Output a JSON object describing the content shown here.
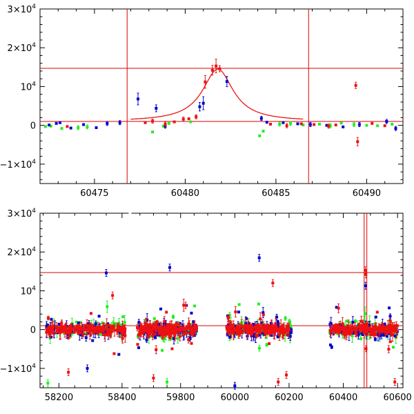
{
  "chart_data": [
    {
      "type": "scatter",
      "title": "",
      "xlabel": "",
      "ylabel": "",
      "xlim": [
        60472,
        60492
      ],
      "ylim": [
        -15000,
        30000
      ],
      "x_ticks": [
        60475,
        60480,
        60485,
        60490
      ],
      "x_tick_labels": [
        "60475",
        "60480",
        "60485",
        "60490"
      ],
      "y_ticks": [
        30000,
        20000,
        10000,
        0,
        -10000
      ],
      "y_tick_labels": [
        {
          "mantissa": "3×10",
          "exp": "4"
        },
        {
          "mantissa": "2×10",
          "exp": "4"
        },
        {
          "mantissa": "10",
          "exp": "4"
        },
        {
          "mantissa": "0",
          "exp": ""
        },
        {
          "mantissa": "−1×10",
          "exp": "4"
        }
      ],
      "grid": false,
      "hlines": [
        14700,
        1000
      ],
      "vlines": [
        60476.8,
        60486.8
      ],
      "colors": {
        "blue": "#0000cc",
        "green": "#22ee22",
        "red": "#ee1111",
        "lines": "#dd0000"
      },
      "model_curve": {
        "peak_x": 60481.8,
        "peak_y": 14500,
        "baseline": 1000,
        "width": 1.1
      },
      "series": [
        {
          "color": "green",
          "points": [
            [
              60472.3,
              -300
            ],
            [
              60472.6,
              -200
            ],
            [
              60473.2,
              -800
            ],
            [
              60474.1,
              -600
            ],
            [
              60474.6,
              -400
            ],
            [
              60478.2,
              -1700
            ],
            [
              60478.8,
              -200
            ],
            [
              60479.1,
              500
            ],
            [
              60480.3,
              900
            ],
            [
              60484.1,
              -2700
            ],
            [
              60484.3,
              -1500
            ],
            [
              60485.2,
              300
            ],
            [
              60485.8,
              500
            ],
            [
              60486.5,
              100
            ],
            [
              60487.4,
              300
            ],
            [
              60488.0,
              -100
            ],
            [
              60488.6,
              600
            ],
            [
              60489.3,
              200
            ],
            [
              60490.0,
              0
            ],
            [
              60490.6,
              -100
            ],
            [
              60491.4,
              300
            ]
          ]
        },
        {
          "color": "blue",
          "points": [
            [
              60472.5,
              100
            ],
            [
              60472.9,
              500
            ],
            [
              60473.1,
              700
            ],
            [
              60473.7,
              -700
            ],
            [
              60474.4,
              200
            ],
            [
              60475.1,
              -600
            ],
            [
              60475.7,
              500
            ],
            [
              60476.4,
              700
            ],
            [
              60477.4,
              6800
            ],
            [
              60478.4,
              4400
            ],
            [
              60478.9,
              -200
            ],
            [
              60480.8,
              4800
            ],
            [
              60481.0,
              5700
            ],
            [
              60482.3,
              11300
            ],
            [
              60484.2,
              1800
            ],
            [
              60484.5,
              800
            ],
            [
              60485.4,
              700
            ],
            [
              60486.2,
              400
            ],
            [
              60486.9,
              200
            ],
            [
              60487.8,
              0
            ],
            [
              60488.7,
              -400
            ],
            [
              60489.6,
              200
            ],
            [
              60491.1,
              1000
            ],
            [
              60491.6,
              -800
            ]
          ]
        },
        {
          "color": "red",
          "points": [
            [
              60473.5,
              -300
            ],
            [
              60477.8,
              700
            ],
            [
              60478.2,
              1100
            ],
            [
              60478.9,
              300
            ],
            [
              60479.4,
              900
            ],
            [
              60479.9,
              1600
            ],
            [
              60480.2,
              1700
            ],
            [
              60480.6,
              2200
            ],
            [
              60481.1,
              11200
            ],
            [
              60481.5,
              14200
            ],
            [
              60481.7,
              15300
            ],
            [
              60481.9,
              14600
            ],
            [
              60484.7,
              300
            ],
            [
              60485.6,
              -100
            ],
            [
              60486.4,
              400
            ],
            [
              60487.1,
              200
            ],
            [
              60487.9,
              -200
            ],
            [
              60488.3,
              100
            ],
            [
              60489.4,
              10300
            ],
            [
              60489.5,
              -4200
            ],
            [
              60490.3,
              500
            ],
            [
              60491.0,
              -100
            ]
          ]
        }
      ]
    },
    {
      "type": "scatter",
      "title": "",
      "xlabel": "",
      "ylabel": "",
      "broken_x_axis": true,
      "segments": [
        {
          "xlim": [
            58140,
            58420
          ],
          "ticks": [
            58200,
            58400
          ],
          "tick_labels": [
            "58200",
            "58400"
          ]
        },
        {
          "xlim": [
            59620,
            60620
          ],
          "ticks": [
            59800,
            60000,
            60200,
            60400,
            60600
          ],
          "tick_labels": [
            "59800",
            "60000",
            "60200",
            "60400",
            "60600"
          ]
        }
      ],
      "ylim": [
        -15000,
        30000
      ],
      "y_ticks": [
        30000,
        20000,
        10000,
        0,
        -10000
      ],
      "y_tick_labels": [
        {
          "mantissa": "3×10",
          "exp": "4"
        },
        {
          "mantissa": "2×10",
          "exp": "4"
        },
        {
          "mantissa": "10",
          "exp": "4"
        },
        {
          "mantissa": "0",
          "exp": ""
        },
        {
          "mantissa": "−1×10",
          "exp": "4"
        }
      ],
      "grid": false,
      "hlines": [
        14700,
        1000
      ],
      "vlines": [
        60476.8,
        60486.8
      ],
      "colors": {
        "blue": "#0000cc",
        "green": "#22ee22",
        "red": "#ee1111",
        "lines": "#dd0000"
      },
      "observing_seasons": [
        {
          "x_range": [
            58160,
            58410
          ],
          "spread": 2200
        },
        {
          "x_range": [
            59640,
            59860
          ],
          "spread": 2400
        },
        {
          "x_range": [
            59970,
            60210
          ],
          "spread": 2400
        },
        {
          "x_range": [
            60350,
            60600
          ],
          "spread": 2200
        }
      ],
      "notable_points": [
        {
          "color": "blue",
          "x": 58350,
          "y": 14600
        },
        {
          "color": "blue",
          "x": 59760,
          "y": 16000
        },
        {
          "color": "blue",
          "x": 60090,
          "y": 18500
        },
        {
          "color": "blue",
          "x": 60482,
          "y": 11300
        },
        {
          "color": "red",
          "x": 60481,
          "y": 15300
        },
        {
          "color": "red",
          "x": 60483,
          "y": 14200
        },
        {
          "color": "red",
          "x": 58370,
          "y": 8800
        },
        {
          "color": "red",
          "x": 60140,
          "y": 12000
        },
        {
          "color": "red",
          "x": 58230,
          "y": -11000
        },
        {
          "color": "red",
          "x": 59700,
          "y": -12500
        },
        {
          "color": "red",
          "x": 60160,
          "y": -13500
        },
        {
          "color": "red",
          "x": 60190,
          "y": -11700
        },
        {
          "color": "red",
          "x": 60590,
          "y": -13500
        },
        {
          "color": "green",
          "x": 58165,
          "y": -13800
        },
        {
          "color": "green",
          "x": 59750,
          "y": -13500
        },
        {
          "color": "blue",
          "x": 60000,
          "y": -14500
        },
        {
          "color": "blue",
          "x": 58290,
          "y": -10000
        },
        {
          "color": "blue",
          "x": 58390,
          "y": -6400
        },
        {
          "color": "red",
          "x": 58375,
          "y": -6200
        }
      ]
    }
  ]
}
